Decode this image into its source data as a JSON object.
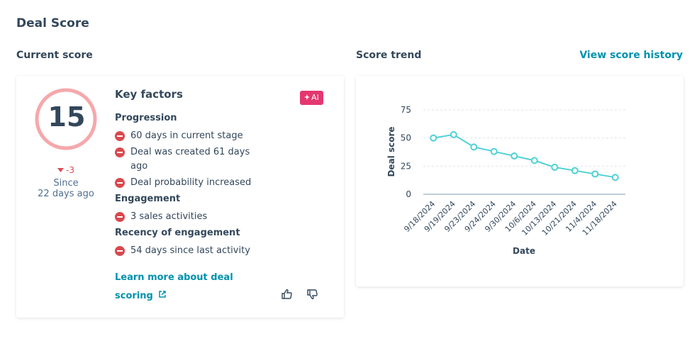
{
  "header": {
    "title": "Deal Score"
  },
  "current_score": {
    "heading": "Current score",
    "score": "15",
    "change": "-3",
    "since": "Since",
    "since_period": "22 days ago",
    "key_factors": {
      "title": "Key factors",
      "badge": "AI",
      "groups": [
        {
          "name": "Progression",
          "items": [
            "60 days in current stage",
            "Deal was created 61 days ago",
            "Deal probability increased"
          ]
        },
        {
          "name": "Engagement",
          "items": [
            "3 sales activities"
          ]
        },
        {
          "name": "Recency of engagement",
          "items": [
            "54 days since last activity"
          ]
        }
      ]
    },
    "link": "Learn more about deal scoring"
  },
  "score_trend": {
    "heading": "Score trend",
    "action": "View score history",
    "chart": {
      "type": "line",
      "xlabel": "Date",
      "ylabel": "Deal score",
      "categories": [
        "9/18/2024",
        "9/19/2024",
        "9/23/2024",
        "9/24/2024",
        "9/30/2024",
        "10/6/2024",
        "10/13/2024",
        "10/21/2024",
        "11/4/2024",
        "11/18/2024"
      ],
      "values": [
        50,
        53,
        42,
        38,
        34,
        30,
        24,
        21,
        18,
        15
      ],
      "color": "#4fd1d6",
      "ylim": [
        0,
        75
      ],
      "yticks": [
        0,
        25,
        50,
        75
      ],
      "grid": true
    }
  }
}
